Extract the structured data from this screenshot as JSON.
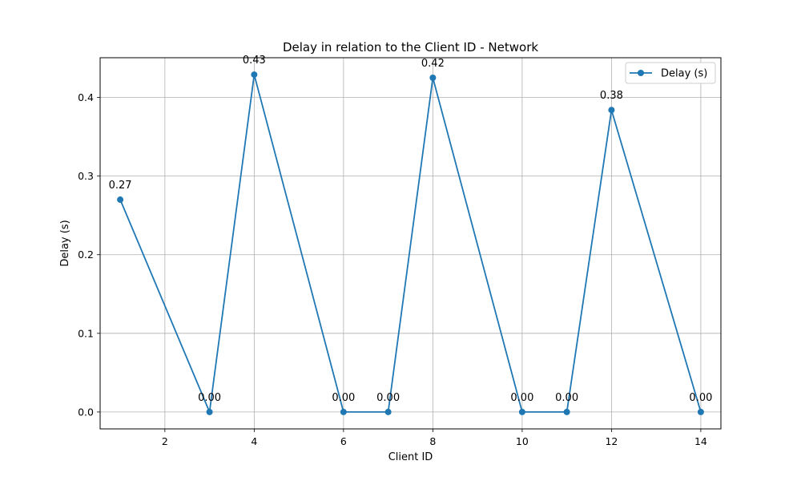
{
  "chart_data": {
    "type": "line",
    "title": "Delay in relation to the Client ID - Network",
    "xlabel": "Client ID",
    "ylabel": "Delay (s)",
    "xlim": [
      0.55,
      14.45
    ],
    "ylim": [
      -0.0215,
      0.4505
    ],
    "xticks": [
      2,
      4,
      6,
      8,
      10,
      12,
      14
    ],
    "yticks": [
      0.0,
      0.1,
      0.2,
      0.3,
      0.4
    ],
    "ytick_labels": [
      "0.0",
      "0.1",
      "0.2",
      "0.3",
      "0.4"
    ],
    "grid": true,
    "legend_position": "top-right",
    "series": [
      {
        "name": "Delay (s)",
        "color": "#1f77b4",
        "marker": "circle",
        "x": [
          1,
          3,
          4,
          6,
          7,
          8,
          10,
          11,
          12,
          14
        ],
        "y": [
          0.27,
          0.0,
          0.429,
          0.0,
          0.0,
          0.425,
          0.0,
          0.0,
          0.384,
          0.0
        ],
        "labels": [
          "0.27",
          "0.00",
          "0.43",
          "0.00",
          "0.00",
          "0.42",
          "0.00",
          "0.00",
          "0.38",
          "0.00"
        ]
      }
    ]
  }
}
